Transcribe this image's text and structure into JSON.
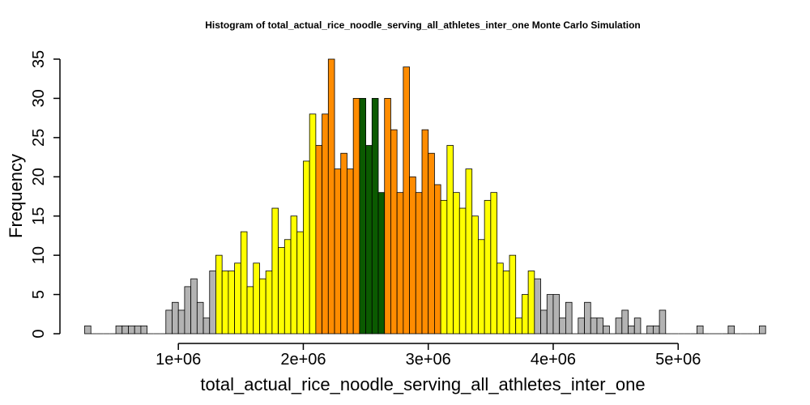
{
  "chart_data": {
    "type": "bar",
    "title": "Histogram of  total_actual_rice_noodle_serving_all_athletes_inter_one  Monte Carlo Simulation",
    "xlabel": "total_actual_rice_noodle_serving_all_athletes_inter_one",
    "ylabel": "Frequency",
    "x_tick_values": [
      1000000,
      2000000,
      3000000,
      4000000,
      5000000
    ],
    "x_tick_labels": [
      "1e+06",
      "2e+06",
      "3e+06",
      "4e+06",
      "5e+06"
    ],
    "y_tick_values": [
      0,
      5,
      10,
      15,
      20,
      25,
      30,
      35
    ],
    "y_tick_labels": [
      "0",
      "5",
      "10",
      "15",
      "20",
      "25",
      "30",
      "35"
    ],
    "xlim": [
      250000,
      5650000
    ],
    "ylim": [
      0,
      35
    ],
    "bin_start": 250000,
    "bin_width": 50000,
    "grid": false,
    "colors": {
      "gray": "#b3b3b3",
      "yellow": "#ffff00",
      "orange": "#ff8c00",
      "green": "#0b5a00"
    },
    "bins": [
      {
        "count": 1,
        "color": "gray"
      },
      {
        "count": 0,
        "color": "gray"
      },
      {
        "count": 0,
        "color": "gray"
      },
      {
        "count": 0,
        "color": "gray"
      },
      {
        "count": 0,
        "color": "gray"
      },
      {
        "count": 1,
        "color": "gray"
      },
      {
        "count": 1,
        "color": "gray"
      },
      {
        "count": 1,
        "color": "gray"
      },
      {
        "count": 1,
        "color": "gray"
      },
      {
        "count": 1,
        "color": "gray"
      },
      {
        "count": 0,
        "color": "gray"
      },
      {
        "count": 0,
        "color": "gray"
      },
      {
        "count": 0,
        "color": "gray"
      },
      {
        "count": 3,
        "color": "gray"
      },
      {
        "count": 4,
        "color": "gray"
      },
      {
        "count": 3,
        "color": "gray"
      },
      {
        "count": 6,
        "color": "gray"
      },
      {
        "count": 7,
        "color": "gray"
      },
      {
        "count": 4,
        "color": "gray"
      },
      {
        "count": 2,
        "color": "gray"
      },
      {
        "count": 8,
        "color": "gray"
      },
      {
        "count": 10,
        "color": "yellow"
      },
      {
        "count": 8,
        "color": "yellow"
      },
      {
        "count": 8,
        "color": "yellow"
      },
      {
        "count": 9,
        "color": "yellow"
      },
      {
        "count": 13,
        "color": "yellow"
      },
      {
        "count": 6,
        "color": "yellow"
      },
      {
        "count": 9,
        "color": "yellow"
      },
      {
        "count": 7,
        "color": "yellow"
      },
      {
        "count": 8,
        "color": "yellow"
      },
      {
        "count": 16,
        "color": "yellow"
      },
      {
        "count": 11,
        "color": "yellow"
      },
      {
        "count": 12,
        "color": "yellow"
      },
      {
        "count": 15,
        "color": "yellow"
      },
      {
        "count": 13,
        "color": "yellow"
      },
      {
        "count": 22,
        "color": "yellow"
      },
      {
        "count": 28,
        "color": "yellow"
      },
      {
        "count": 24,
        "color": "orange"
      },
      {
        "count": 28,
        "color": "orange"
      },
      {
        "count": 35,
        "color": "orange"
      },
      {
        "count": 21,
        "color": "orange"
      },
      {
        "count": 23,
        "color": "orange"
      },
      {
        "count": 21,
        "color": "orange"
      },
      {
        "count": 30,
        "color": "orange"
      },
      {
        "count": 30,
        "color": "green"
      },
      {
        "count": 24,
        "color": "green"
      },
      {
        "count": 30,
        "color": "green"
      },
      {
        "count": 18,
        "color": "green"
      },
      {
        "count": 30,
        "color": "orange"
      },
      {
        "count": 26,
        "color": "orange"
      },
      {
        "count": 18,
        "color": "orange"
      },
      {
        "count": 34,
        "color": "orange"
      },
      {
        "count": 20,
        "color": "orange"
      },
      {
        "count": 18,
        "color": "orange"
      },
      {
        "count": 26,
        "color": "orange"
      },
      {
        "count": 23,
        "color": "orange"
      },
      {
        "count": 19,
        "color": "orange"
      },
      {
        "count": 17,
        "color": "yellow"
      },
      {
        "count": 24,
        "color": "yellow"
      },
      {
        "count": 18,
        "color": "yellow"
      },
      {
        "count": 16,
        "color": "yellow"
      },
      {
        "count": 21,
        "color": "yellow"
      },
      {
        "count": 15,
        "color": "yellow"
      },
      {
        "count": 12,
        "color": "yellow"
      },
      {
        "count": 17,
        "color": "yellow"
      },
      {
        "count": 18,
        "color": "yellow"
      },
      {
        "count": 9,
        "color": "yellow"
      },
      {
        "count": 8,
        "color": "yellow"
      },
      {
        "count": 10,
        "color": "yellow"
      },
      {
        "count": 2,
        "color": "yellow"
      },
      {
        "count": 5,
        "color": "yellow"
      },
      {
        "count": 8,
        "color": "yellow"
      },
      {
        "count": 7,
        "color": "gray"
      },
      {
        "count": 3,
        "color": "gray"
      },
      {
        "count": 5,
        "color": "gray"
      },
      {
        "count": 5,
        "color": "gray"
      },
      {
        "count": 2,
        "color": "gray"
      },
      {
        "count": 4,
        "color": "gray"
      },
      {
        "count": 0,
        "color": "gray"
      },
      {
        "count": 2,
        "color": "gray"
      },
      {
        "count": 4,
        "color": "gray"
      },
      {
        "count": 2,
        "color": "gray"
      },
      {
        "count": 2,
        "color": "gray"
      },
      {
        "count": 1,
        "color": "gray"
      },
      {
        "count": 0,
        "color": "gray"
      },
      {
        "count": 2,
        "color": "gray"
      },
      {
        "count": 3,
        "color": "gray"
      },
      {
        "count": 1,
        "color": "gray"
      },
      {
        "count": 2,
        "color": "gray"
      },
      {
        "count": 0,
        "color": "gray"
      },
      {
        "count": 1,
        "color": "gray"
      },
      {
        "count": 1,
        "color": "gray"
      },
      {
        "count": 3,
        "color": "gray"
      },
      {
        "count": 0,
        "color": "gray"
      },
      {
        "count": 0,
        "color": "gray"
      },
      {
        "count": 0,
        "color": "gray"
      },
      {
        "count": 0,
        "color": "gray"
      },
      {
        "count": 0,
        "color": "gray"
      },
      {
        "count": 1,
        "color": "gray"
      },
      {
        "count": 0,
        "color": "gray"
      },
      {
        "count": 0,
        "color": "gray"
      },
      {
        "count": 0,
        "color": "gray"
      },
      {
        "count": 0,
        "color": "gray"
      },
      {
        "count": 1,
        "color": "gray"
      },
      {
        "count": 0,
        "color": "gray"
      },
      {
        "count": 0,
        "color": "gray"
      },
      {
        "count": 0,
        "color": "gray"
      },
      {
        "count": 0,
        "color": "gray"
      },
      {
        "count": 1,
        "color": "gray"
      }
    ]
  }
}
